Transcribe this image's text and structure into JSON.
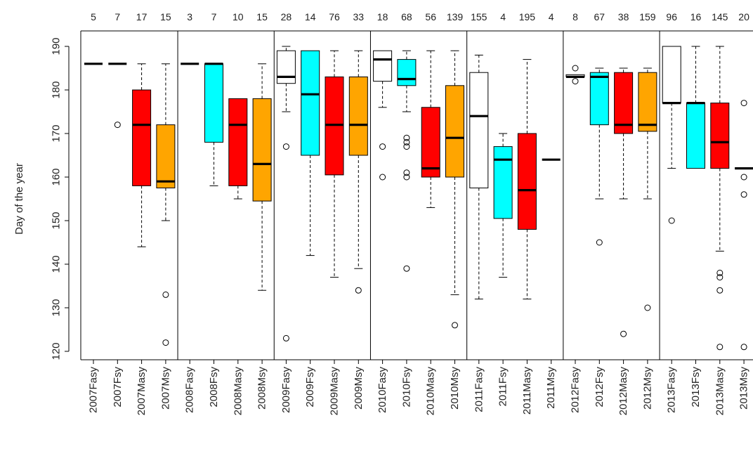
{
  "chart_data": {
    "type": "box",
    "ylabel": "Day of the year",
    "ylim": [
      118,
      193
    ],
    "yticks": [
      120,
      130,
      140,
      150,
      160,
      170,
      180,
      190
    ],
    "grid": false,
    "group_colors": {
      "Fasy": "#ffffff",
      "Fsy": "#00ffff",
      "Masy": "#ff0000",
      "Msy": "#ffa500"
    },
    "categories": [
      {
        "label": "2007Fasy",
        "count": "5",
        "group": "Fasy",
        "min": 186,
        "q1": 186,
        "median": 186,
        "q3": 186,
        "max": 186,
        "outliers": []
      },
      {
        "label": "2007Fsy",
        "count": "7",
        "group": "Fsy",
        "min": 186,
        "q1": 186,
        "median": 186,
        "q3": 186,
        "max": 186,
        "outliers": [
          172
        ]
      },
      {
        "label": "2007Masy",
        "count": "17",
        "group": "Masy",
        "min": 144,
        "q1": 158,
        "median": 172,
        "q3": 180,
        "max": 186,
        "outliers": []
      },
      {
        "label": "2007Msy",
        "count": "15",
        "group": "Msy",
        "min": 150,
        "q1": 157.5,
        "median": 159,
        "q3": 172,
        "max": 186,
        "outliers": [
          133,
          122
        ]
      },
      {
        "label": "2008Fasy",
        "count": "3",
        "group": "Fasy",
        "min": 186,
        "q1": 186,
        "median": 186,
        "q3": 186,
        "max": 186,
        "outliers": []
      },
      {
        "label": "2008Fsy",
        "count": "7",
        "group": "Fsy",
        "min": 158,
        "q1": 168,
        "median": 186,
        "q3": 186,
        "max": 186,
        "outliers": []
      },
      {
        "label": "2008Masy",
        "count": "10",
        "group": "Masy",
        "min": 155,
        "q1": 158,
        "median": 172,
        "q3": 178,
        "max": 178,
        "outliers": []
      },
      {
        "label": "2008Msy",
        "count": "15",
        "group": "Msy",
        "min": 134,
        "q1": 154.5,
        "median": 163,
        "q3": 178,
        "max": 186,
        "outliers": []
      },
      {
        "label": "2009Fasy",
        "count": "28",
        "group": "Fasy",
        "min": 175,
        "q1": 181.5,
        "median": 183,
        "q3": 189,
        "max": 190,
        "outliers": [
          167,
          123
        ]
      },
      {
        "label": "2009Fsy",
        "count": "14",
        "group": "Fsy",
        "min": 142,
        "q1": 165,
        "median": 179,
        "q3": 189,
        "max": 189,
        "outliers": []
      },
      {
        "label": "2009Masy",
        "count": "76",
        "group": "Masy",
        "min": 137,
        "q1": 160.5,
        "median": 172,
        "q3": 183,
        "max": 189,
        "outliers": []
      },
      {
        "label": "2009Msy",
        "count": "33",
        "group": "Msy",
        "min": 139,
        "q1": 165,
        "median": 172,
        "q3": 183,
        "max": 189,
        "outliers": [
          134
        ]
      },
      {
        "label": "2010Fasy",
        "count": "18",
        "group": "Fasy",
        "min": 176,
        "q1": 182,
        "median": 187,
        "q3": 189,
        "max": 189,
        "outliers": [
          167,
          160
        ]
      },
      {
        "label": "2010Fsy",
        "count": "68",
        "group": "Fsy",
        "min": 175,
        "q1": 181,
        "median": 182.5,
        "q3": 187,
        "max": 189,
        "outliers": [
          169,
          168,
          167,
          161,
          160,
          139
        ]
      },
      {
        "label": "2010Masy",
        "count": "56",
        "group": "Masy",
        "min": 153,
        "q1": 160,
        "median": 162,
        "q3": 176,
        "max": 189,
        "outliers": []
      },
      {
        "label": "2010Msy",
        "count": "139",
        "group": "Msy",
        "min": 133,
        "q1": 160,
        "median": 169,
        "q3": 181,
        "max": 189,
        "outliers": [
          126
        ]
      },
      {
        "label": "2011Fasy",
        "count": "155",
        "group": "Fasy",
        "min": 132,
        "q1": 157.5,
        "median": 174,
        "q3": 184,
        "max": 188,
        "outliers": []
      },
      {
        "label": "2011Fsy",
        "count": "4",
        "group": "Fsy",
        "min": 137,
        "q1": 150.5,
        "median": 164,
        "q3": 167,
        "max": 170,
        "outliers": []
      },
      {
        "label": "2011Masy",
        "count": "195",
        "group": "Masy",
        "min": 132,
        "q1": 148,
        "median": 157,
        "q3": 170,
        "max": 187,
        "outliers": []
      },
      {
        "label": "2011Msy",
        "count": "4",
        "group": "Msy",
        "min": 164,
        "q1": 164,
        "median": 164,
        "q3": 164,
        "max": 164,
        "outliers": []
      },
      {
        "label": "2012Fasy",
        "count": "8",
        "group": "Fasy",
        "min": 183,
        "q1": 183,
        "median": 183,
        "q3": 183.5,
        "max": 183.5,
        "outliers": [
          185,
          182
        ]
      },
      {
        "label": "2012Fsy",
        "count": "67",
        "group": "Fsy",
        "min": 155,
        "q1": 172,
        "median": 183,
        "q3": 184,
        "max": 185,
        "outliers": [
          145
        ]
      },
      {
        "label": "2012Masy",
        "count": "38",
        "group": "Masy",
        "min": 155,
        "q1": 170,
        "median": 172,
        "q3": 184,
        "max": 185,
        "outliers": [
          124
        ]
      },
      {
        "label": "2012Msy",
        "count": "159",
        "group": "Msy",
        "min": 155,
        "q1": 170.5,
        "median": 172,
        "q3": 184,
        "max": 185,
        "outliers": [
          130
        ]
      },
      {
        "label": "2013Fasy",
        "count": "96",
        "group": "Fasy",
        "min": 162,
        "q1": 177,
        "median": 177,
        "q3": 190,
        "max": 190,
        "outliers": [
          150
        ]
      },
      {
        "label": "2013Fsy",
        "count": "16",
        "group": "Fsy",
        "min": 162,
        "q1": 162,
        "median": 177,
        "q3": 177,
        "max": 190,
        "outliers": []
      },
      {
        "label": "2013Masy",
        "count": "145",
        "group": "Masy",
        "min": 143,
        "q1": 162,
        "median": 168,
        "q3": 177,
        "max": 190,
        "outliers": [
          138,
          137,
          134,
          121
        ]
      },
      {
        "label": "2013Msy",
        "count": "20",
        "group": "Msy",
        "min": 162,
        "q1": 162,
        "median": 162,
        "q3": 162,
        "max": 162,
        "outliers": [
          177,
          160,
          156,
          121
        ]
      }
    ]
  }
}
